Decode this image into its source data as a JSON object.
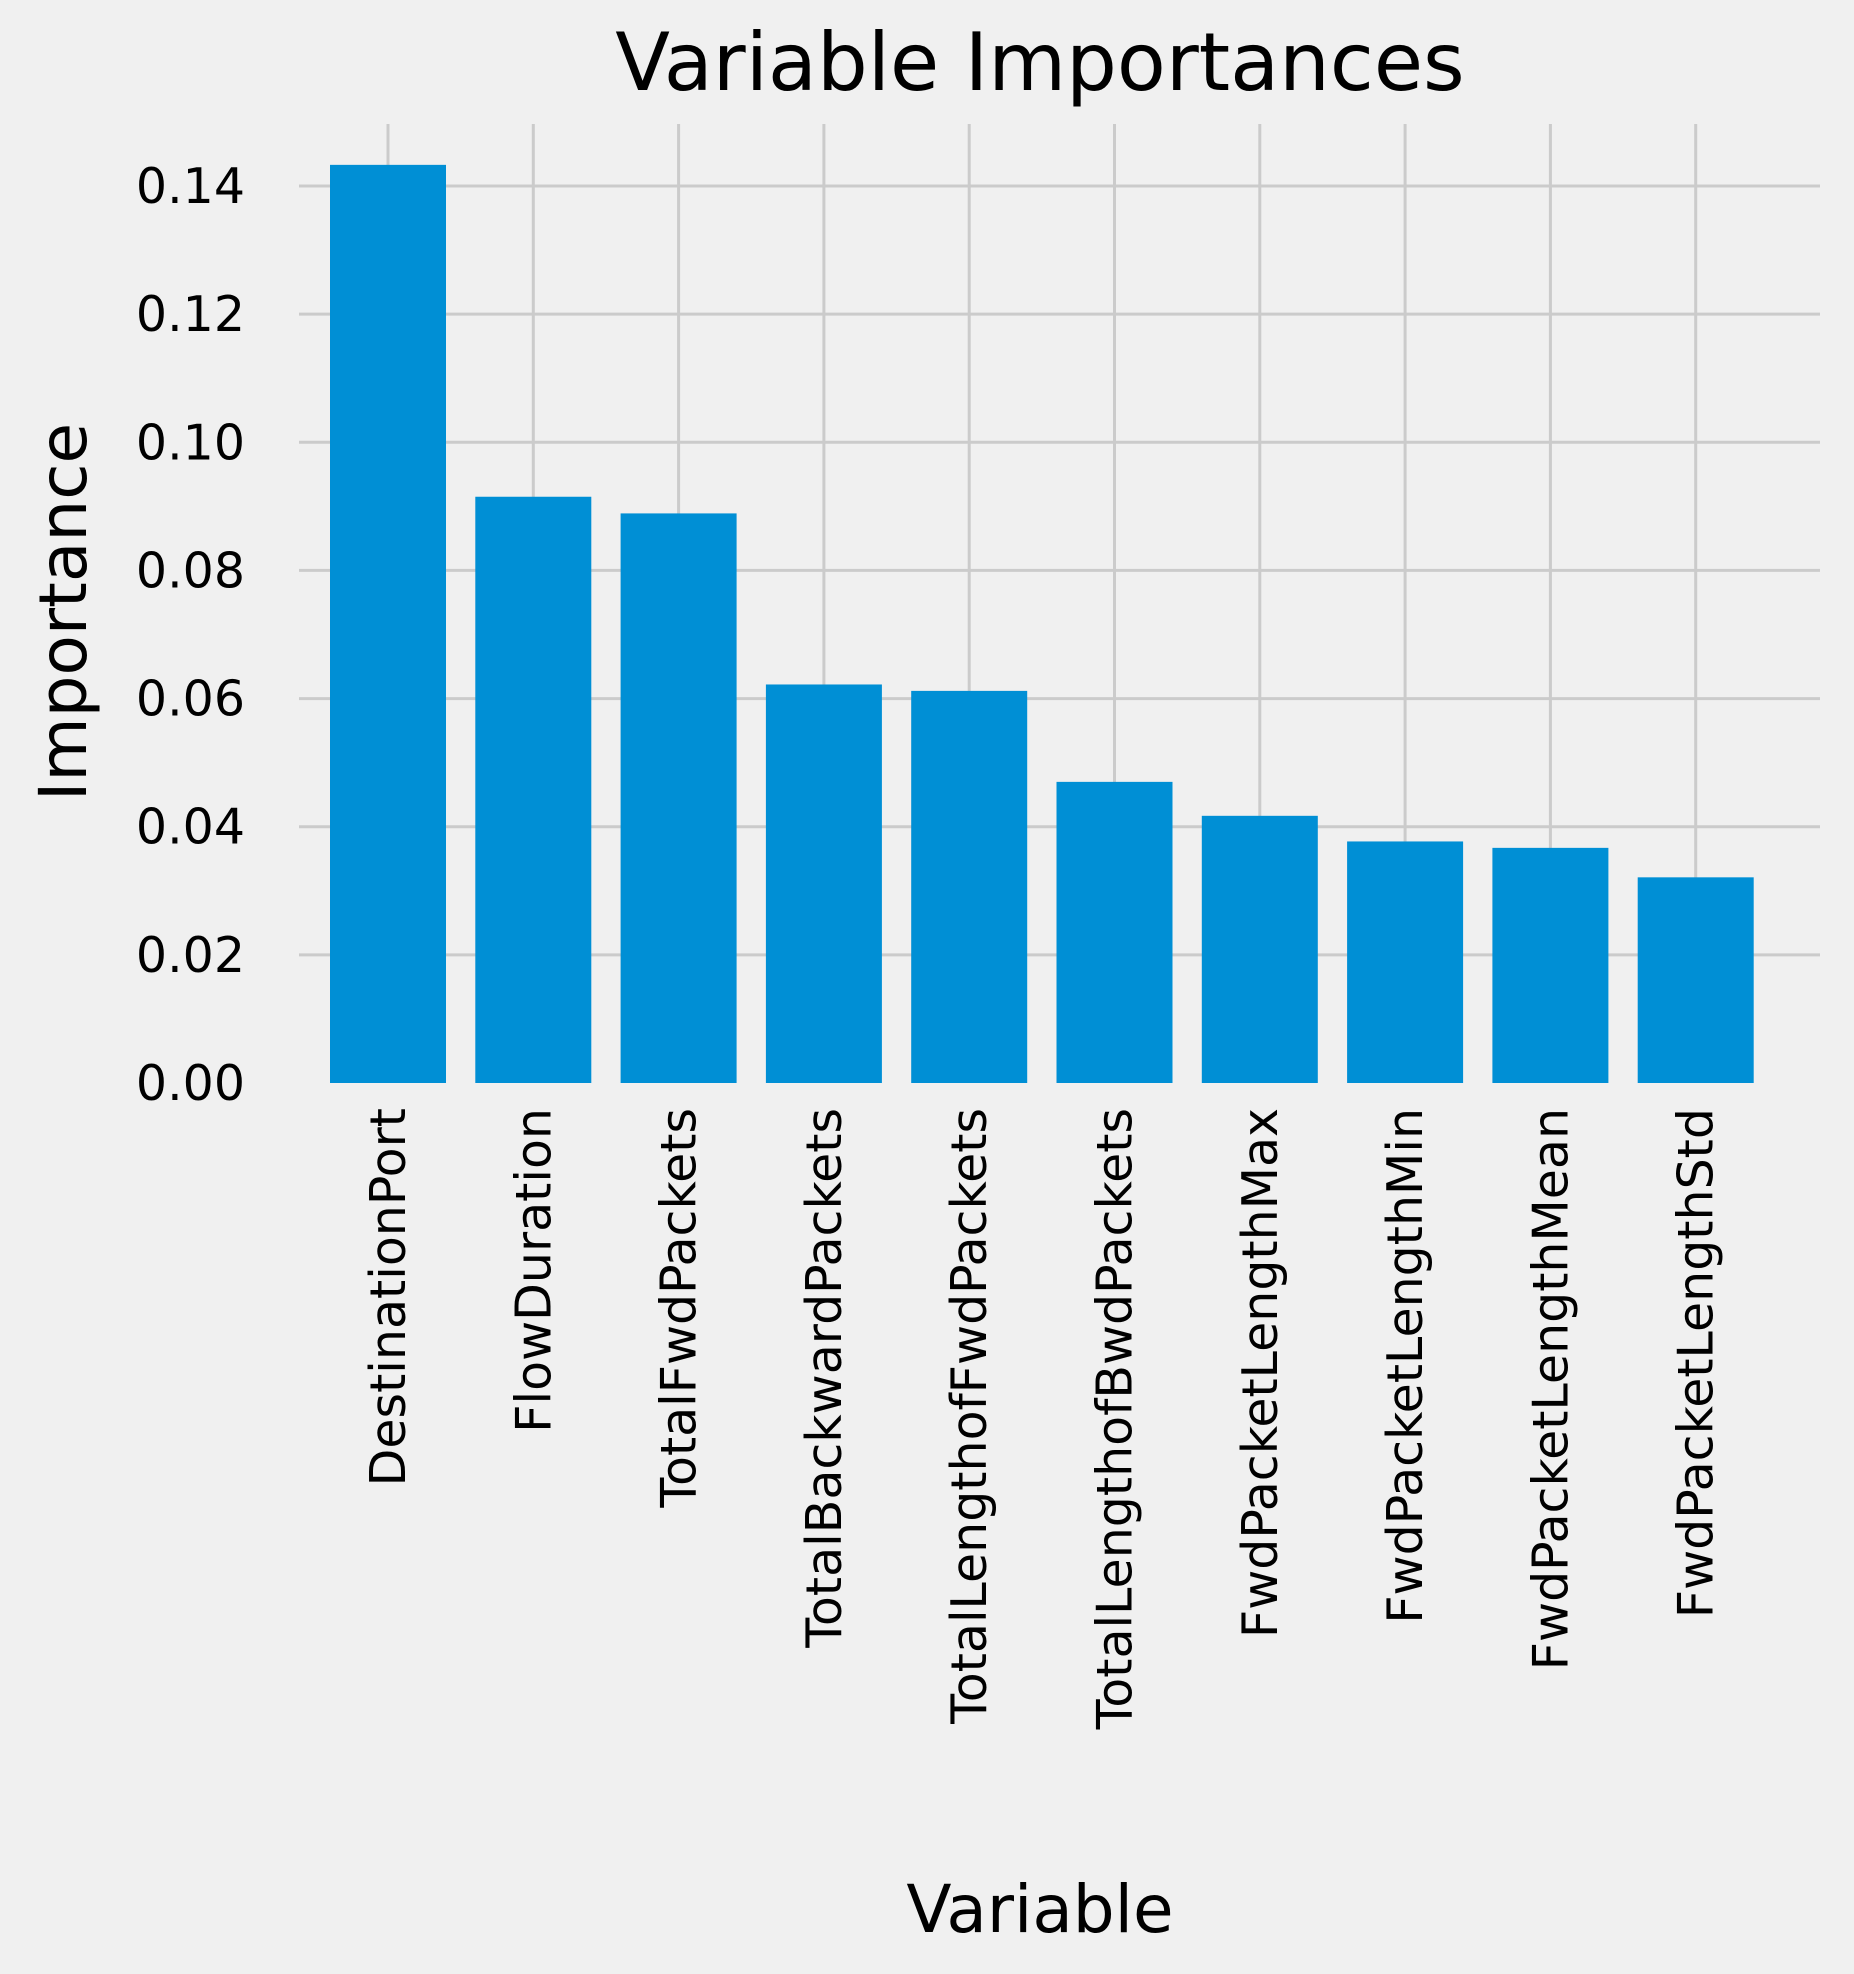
{
  "chart_data": {
    "type": "bar",
    "title": "Variable Importances",
    "xlabel": "Variable",
    "ylabel": "Importance",
    "categories": [
      "DestinationPort",
      "FlowDuration",
      "TotalFwdPackets",
      "TotalBackwardPackets",
      "TotalLengthofFwdPackets",
      "TotalLengthofBwdPackets",
      "FwdPacketLengthMax",
      "FwdPacketLengthMin",
      "FwdPacketLengthMean",
      "FwdPacketLengthStd"
    ],
    "values": [
      0.1433,
      0.0915,
      0.0889,
      0.0622,
      0.0612,
      0.047,
      0.0417,
      0.0377,
      0.0367,
      0.0321
    ],
    "ylim": [
      0,
      0.15
    ],
    "yticks": [
      0.0,
      0.02,
      0.04,
      0.06,
      0.08,
      0.1,
      0.12,
      0.14
    ],
    "ytick_labels": [
      "0.00",
      "0.02",
      "0.04",
      "0.06",
      "0.08",
      "0.10",
      "0.12",
      "0.14"
    ],
    "grid": true,
    "bar_color": "#008fd5",
    "background_color": "#f0f0f0",
    "grid_color": "#cbcbcb"
  }
}
